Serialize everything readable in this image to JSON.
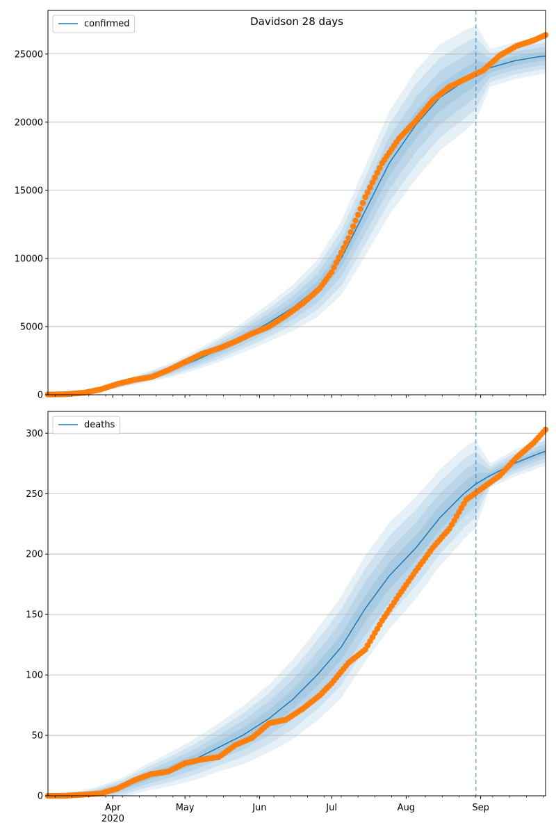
{
  "chart_data": [
    {
      "type": "line",
      "title": "Davidson 28 days",
      "legend": "confirmed",
      "legend_position": "top-left",
      "grid": "y",
      "ylim": [
        0,
        28200
      ],
      "yticks": [
        0,
        5000,
        10000,
        15000,
        20000,
        25000
      ],
      "forecast_start": "2020-08-30",
      "colors": {
        "model": "#1f77b4",
        "observed": "#ff7f0e",
        "band": "#1f77b4"
      },
      "model": {
        "x": [
          "2020-03-05",
          "2020-03-15",
          "2020-03-25",
          "2020-04-05",
          "2020-04-15",
          "2020-04-25",
          "2020-05-05",
          "2020-05-15",
          "2020-05-25",
          "2020-06-05",
          "2020-06-15",
          "2020-06-25",
          "2020-07-05",
          "2020-07-15",
          "2020-07-25",
          "2020-08-05",
          "2020-08-15",
          "2020-08-25",
          "2020-08-30",
          "2020-09-05",
          "2020-09-15",
          "2020-09-25",
          "2020-09-28"
        ],
        "y": [
          0,
          50,
          250,
          800,
          1300,
          1800,
          2500,
          3300,
          4200,
          5300,
          6400,
          7800,
          10000,
          13500,
          17000,
          19800,
          21800,
          23000,
          23600,
          24000,
          24500,
          24800,
          24850
        ],
        "band_half_width": [
          0,
          20,
          60,
          250,
          380,
          520,
          700,
          900,
          1100,
          1400,
          1700,
          2100,
          2700,
          3300,
          3800,
          4000,
          3900,
          3700,
          3500,
          1400,
          1350,
          1300,
          1300
        ]
      },
      "observed": {
        "x": [
          "2020-03-05",
          "2020-03-12",
          "2020-03-20",
          "2020-03-27",
          "2020-04-03",
          "2020-04-10",
          "2020-04-17",
          "2020-04-24",
          "2020-05-01",
          "2020-05-08",
          "2020-05-15",
          "2020-05-22",
          "2020-05-29",
          "2020-06-05",
          "2020-06-12",
          "2020-06-19",
          "2020-06-26",
          "2020-07-01",
          "2020-07-08",
          "2020-07-15",
          "2020-07-22",
          "2020-07-29",
          "2020-08-05",
          "2020-08-12",
          "2020-08-19",
          "2020-08-26",
          "2020-09-02",
          "2020-09-09",
          "2020-09-16",
          "2020-09-23",
          "2020-09-28"
        ],
        "y": [
          20,
          40,
          150,
          400,
          800,
          1100,
          1300,
          1800,
          2400,
          3000,
          3400,
          3900,
          4500,
          5000,
          5800,
          6700,
          7800,
          9000,
          11500,
          14500,
          17000,
          18800,
          20100,
          21600,
          22600,
          23200,
          23800,
          24900,
          25600,
          26000,
          26400
        ]
      }
    },
    {
      "type": "line",
      "title": "",
      "legend": "deaths",
      "legend_position": "top-left",
      "grid": "y",
      "ylim": [
        0,
        318
      ],
      "yticks": [
        0,
        50,
        100,
        150,
        200,
        250,
        300
      ],
      "forecast_start": "2020-08-30",
      "colors": {
        "model": "#1f77b4",
        "observed": "#ff7f0e",
        "band": "#1f77b4"
      },
      "model": {
        "x": [
          "2020-03-05",
          "2020-03-15",
          "2020-03-25",
          "2020-04-05",
          "2020-04-15",
          "2020-04-25",
          "2020-05-05",
          "2020-05-15",
          "2020-05-25",
          "2020-06-05",
          "2020-06-15",
          "2020-06-25",
          "2020-07-05",
          "2020-07-15",
          "2020-07-25",
          "2020-08-05",
          "2020-08-15",
          "2020-08-25",
          "2020-08-30",
          "2020-09-05",
          "2020-09-15",
          "2020-09-25",
          "2020-09-28"
        ],
        "y": [
          0,
          0,
          2,
          7,
          15,
          22,
          30,
          40,
          50,
          64,
          80,
          100,
          123,
          155,
          182,
          205,
          230,
          250,
          258,
          265,
          275,
          283,
          285
        ],
        "band_half_width": [
          2,
          3,
          5,
          8,
          11,
          14,
          17,
          20,
          24,
          28,
          33,
          38,
          42,
          44,
          44,
          42,
          40,
          38,
          36,
          10,
          11,
          12,
          12
        ]
      },
      "observed": {
        "x": [
          "2020-03-05",
          "2020-03-12",
          "2020-03-20",
          "2020-03-27",
          "2020-04-03",
          "2020-04-10",
          "2020-04-17",
          "2020-04-24",
          "2020-05-01",
          "2020-05-08",
          "2020-05-15",
          "2020-05-22",
          "2020-05-29",
          "2020-06-05",
          "2020-06-12",
          "2020-06-19",
          "2020-06-26",
          "2020-07-01",
          "2020-07-08",
          "2020-07-15",
          "2020-07-22",
          "2020-07-29",
          "2020-08-05",
          "2020-08-12",
          "2020-08-19",
          "2020-08-26",
          "2020-09-02",
          "2020-09-09",
          "2020-09-16",
          "2020-09-23",
          "2020-09-28"
        ],
        "y": [
          0,
          0,
          1,
          2,
          6,
          13,
          18,
          20,
          27,
          30,
          32,
          42,
          48,
          60,
          63,
          72,
          83,
          93,
          110,
          121,
          145,
          166,
          186,
          205,
          221,
          245,
          255,
          265,
          280,
          292,
          303
        ]
      }
    }
  ],
  "x_axis": {
    "labels": [
      {
        "date": "2020-04-01",
        "text": "Apr"
      },
      {
        "date": "2020-05-01",
        "text": "May"
      },
      {
        "date": "2020-06-01",
        "text": "Jun"
      },
      {
        "date": "2020-07-01",
        "text": "Jul"
      },
      {
        "date": "2020-08-01",
        "text": "Aug"
      },
      {
        "date": "2020-09-01",
        "text": "Sep"
      }
    ],
    "year_label": "2020",
    "start": "2020-03-05",
    "end": "2020-09-28"
  }
}
